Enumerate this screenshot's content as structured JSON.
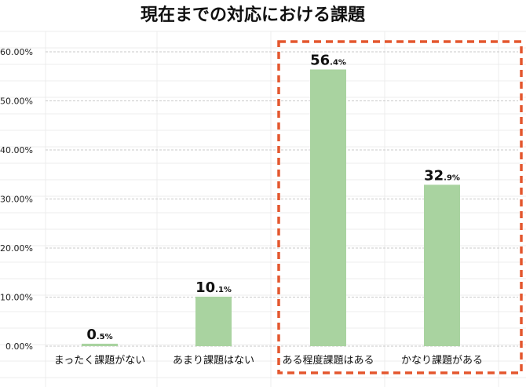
{
  "chart_data": {
    "type": "bar",
    "title": "現在までの対応における課題",
    "categories": [
      "まったく課題がない",
      "あまり課題はない",
      "ある程度課題はある",
      "かなり課題がある"
    ],
    "values": [
      0.5,
      10.1,
      56.4,
      32.9
    ],
    "data_labels": [
      {
        "main": "0",
        "small": ".5%"
      },
      {
        "main": "10",
        "small": ".1%"
      },
      {
        "main": "56",
        "small": ".4%"
      },
      {
        "main": "32",
        "small": ".9%"
      }
    ],
    "ylim": [
      0,
      60
    ],
    "yticks": [
      0,
      10,
      20,
      30,
      40,
      50,
      60
    ],
    "ytick_labels": [
      "0.00%",
      "10.00%",
      "20.00%",
      "30.00%",
      "40.00%",
      "50.00%",
      "60.00%"
    ],
    "xlabel": "",
    "ylabel": "",
    "grid": true,
    "highlight_categories": [
      2,
      3
    ],
    "colors": {
      "bar": "#a9d3a0",
      "highlight_box": "#e4572e",
      "grid": "#c9c9c9",
      "cell_lines": "#ececec"
    }
  }
}
